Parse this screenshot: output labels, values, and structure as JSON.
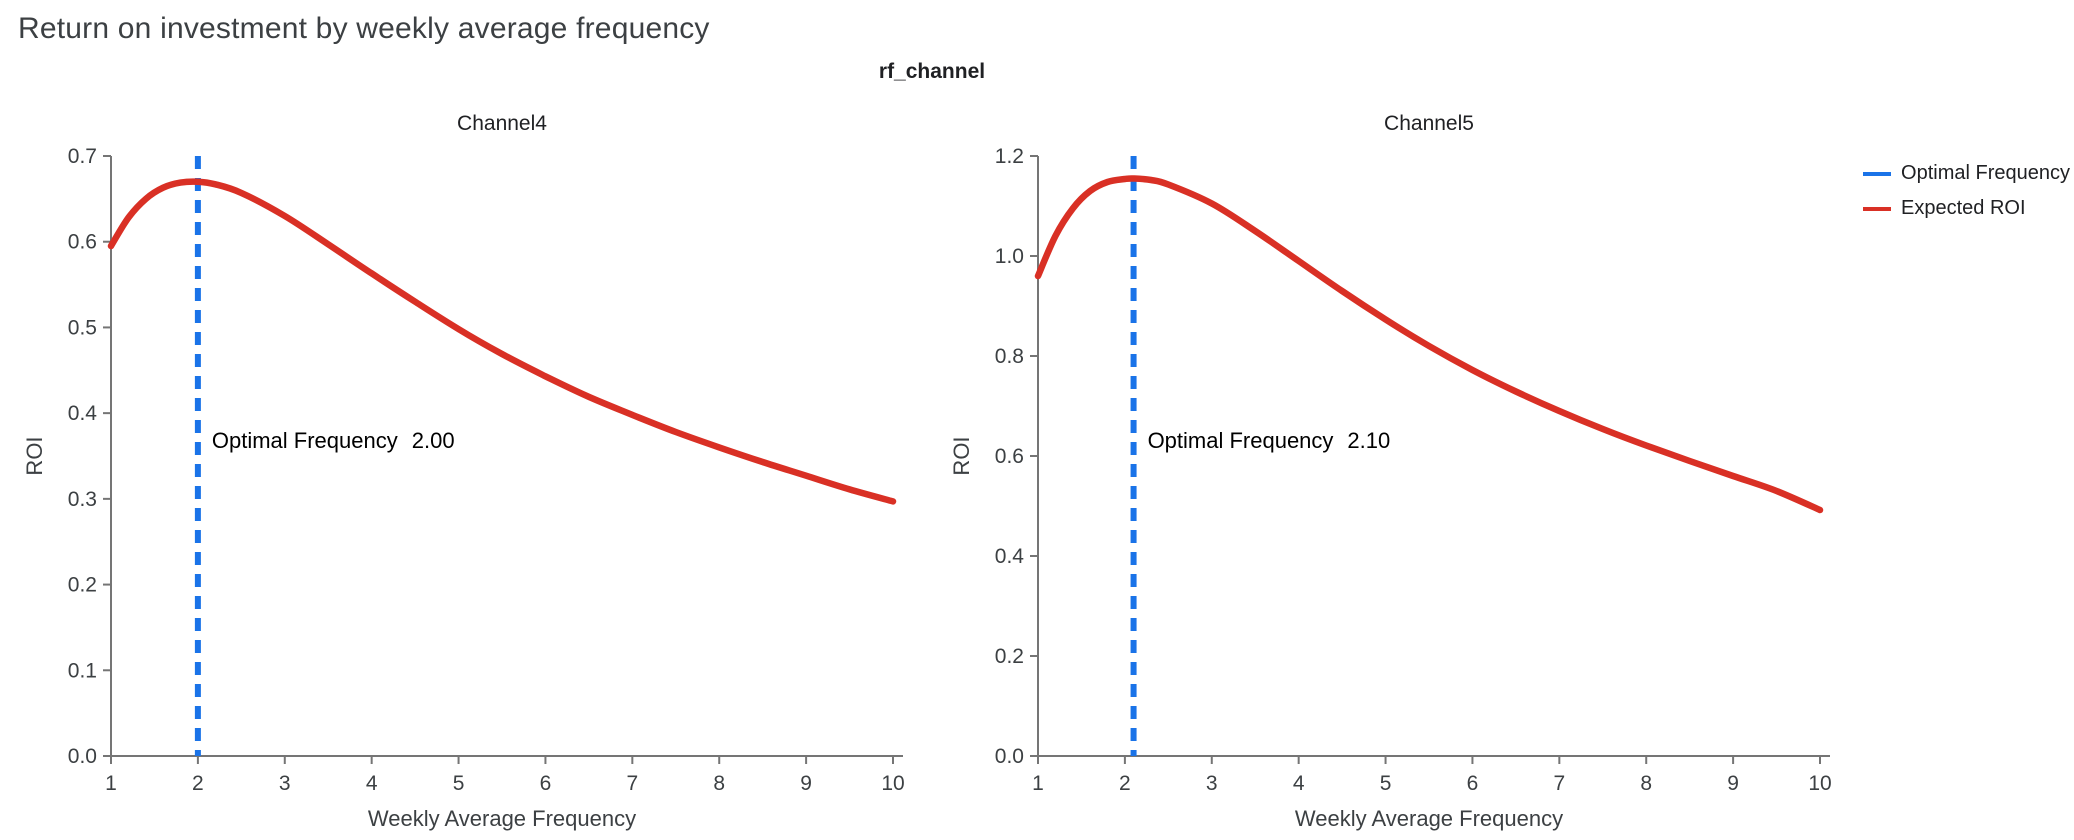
{
  "page_title": "Return on investment by weekly average frequency",
  "facet_title": "rf_channel",
  "colors": {
    "title_text": "#3c4043",
    "axis": "#757575",
    "tick_text": "#3c4043",
    "subplot_title_text": "#202124",
    "optimal_frequency_blue": "#1a73e8",
    "expected_roi_red": "#d93025",
    "annotation_text": "#000000"
  },
  "legend": {
    "position": "top-right",
    "items": [
      {
        "label": "Optimal Frequency",
        "color": "#1a73e8"
      },
      {
        "label": "Expected ROI",
        "color": "#d93025"
      }
    ]
  },
  "chart_data": [
    {
      "type": "line",
      "title": "Channel4",
      "xlabel": "Weekly Average Frequency",
      "ylabel": "ROI",
      "xlim": [
        1,
        10
      ],
      "ylim": [
        0.0,
        0.7
      ],
      "xticks": [
        1,
        2,
        3,
        4,
        5,
        6,
        7,
        8,
        9,
        10
      ],
      "yticks": [
        0.0,
        0.1,
        0.2,
        0.3,
        0.4,
        0.5,
        0.6,
        0.7
      ],
      "grid": false,
      "optimal_frequency": 2.0,
      "annotation": {
        "label": "Optimal Frequency",
        "value": "2.00"
      },
      "series": [
        {
          "name": "Expected ROI",
          "x": [
            1,
            1.2,
            1.4,
            1.6,
            1.8,
            2,
            2.2,
            2.5,
            3,
            3.5,
            4,
            4.5,
            5,
            5.5,
            6,
            6.5,
            7,
            7.5,
            8,
            8.5,
            9,
            9.5,
            10
          ],
          "y": [
            0.595,
            0.628,
            0.65,
            0.663,
            0.669,
            0.67,
            0.667,
            0.657,
            0.63,
            0.597,
            0.563,
            0.53,
            0.498,
            0.469,
            0.443,
            0.419,
            0.398,
            0.378,
            0.36,
            0.343,
            0.327,
            0.311,
            0.297
          ]
        }
      ]
    },
    {
      "type": "line",
      "title": "Channel5",
      "xlabel": "Weekly Average Frequency",
      "ylabel": "ROI",
      "xlim": [
        1,
        10
      ],
      "ylim": [
        0.0,
        1.2
      ],
      "xticks": [
        1,
        2,
        3,
        4,
        5,
        6,
        7,
        8,
        9,
        10
      ],
      "yticks": [
        0.0,
        0.2,
        0.4,
        0.6,
        0.8,
        1.0,
        1.2
      ],
      "grid": false,
      "optimal_frequency": 2.1,
      "annotation": {
        "label": "Optimal Frequency",
        "value": "2.10"
      },
      "series": [
        {
          "name": "Expected ROI",
          "x": [
            1,
            1.2,
            1.4,
            1.6,
            1.8,
            2,
            2.1,
            2.3,
            2.5,
            3,
            3.5,
            4,
            4.5,
            5,
            5.5,
            6,
            6.5,
            7,
            7.5,
            8,
            8.5,
            9,
            9.5,
            10
          ],
          "y": [
            0.96,
            1.04,
            1.095,
            1.13,
            1.148,
            1.154,
            1.155,
            1.152,
            1.143,
            1.105,
            1.05,
            0.99,
            0.93,
            0.873,
            0.82,
            0.772,
            0.729,
            0.69,
            0.654,
            0.621,
            0.59,
            0.56,
            0.53,
            0.492
          ]
        }
      ]
    }
  ]
}
